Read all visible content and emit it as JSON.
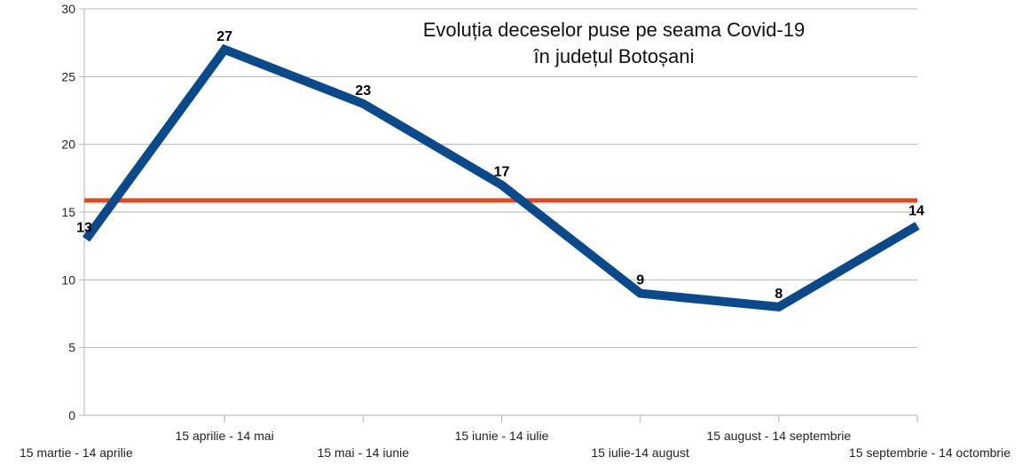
{
  "chart_data": {
    "type": "line",
    "title": [
      "Evoluția deceselor puse pe seama Covid-19",
      "în județul Botoșani"
    ],
    "categories": [
      "15 martie - 14 aprilie",
      "15 aprilie - 14 mai",
      "15 mai - 14 iunie",
      "15 iunie - 14 iulie",
      "15 iulie-14 august",
      "15 august - 14 septembrie",
      "15 septembrie - 14 octombrie"
    ],
    "series": [
      {
        "values": [
          13,
          27,
          23,
          17,
          9,
          8,
          14
        ],
        "color": "#0a4a8c"
      }
    ],
    "reference_line": {
      "value": 15.86,
      "color": "#e8471e"
    },
    "ylim": [
      0,
      30
    ],
    "yticks": [
      "0",
      "5",
      "10",
      "15",
      "20",
      "25",
      "30"
    ],
    "grid": true,
    "data_labels": [
      "13",
      "27",
      "23",
      "17",
      "9",
      "8",
      "14"
    ]
  }
}
